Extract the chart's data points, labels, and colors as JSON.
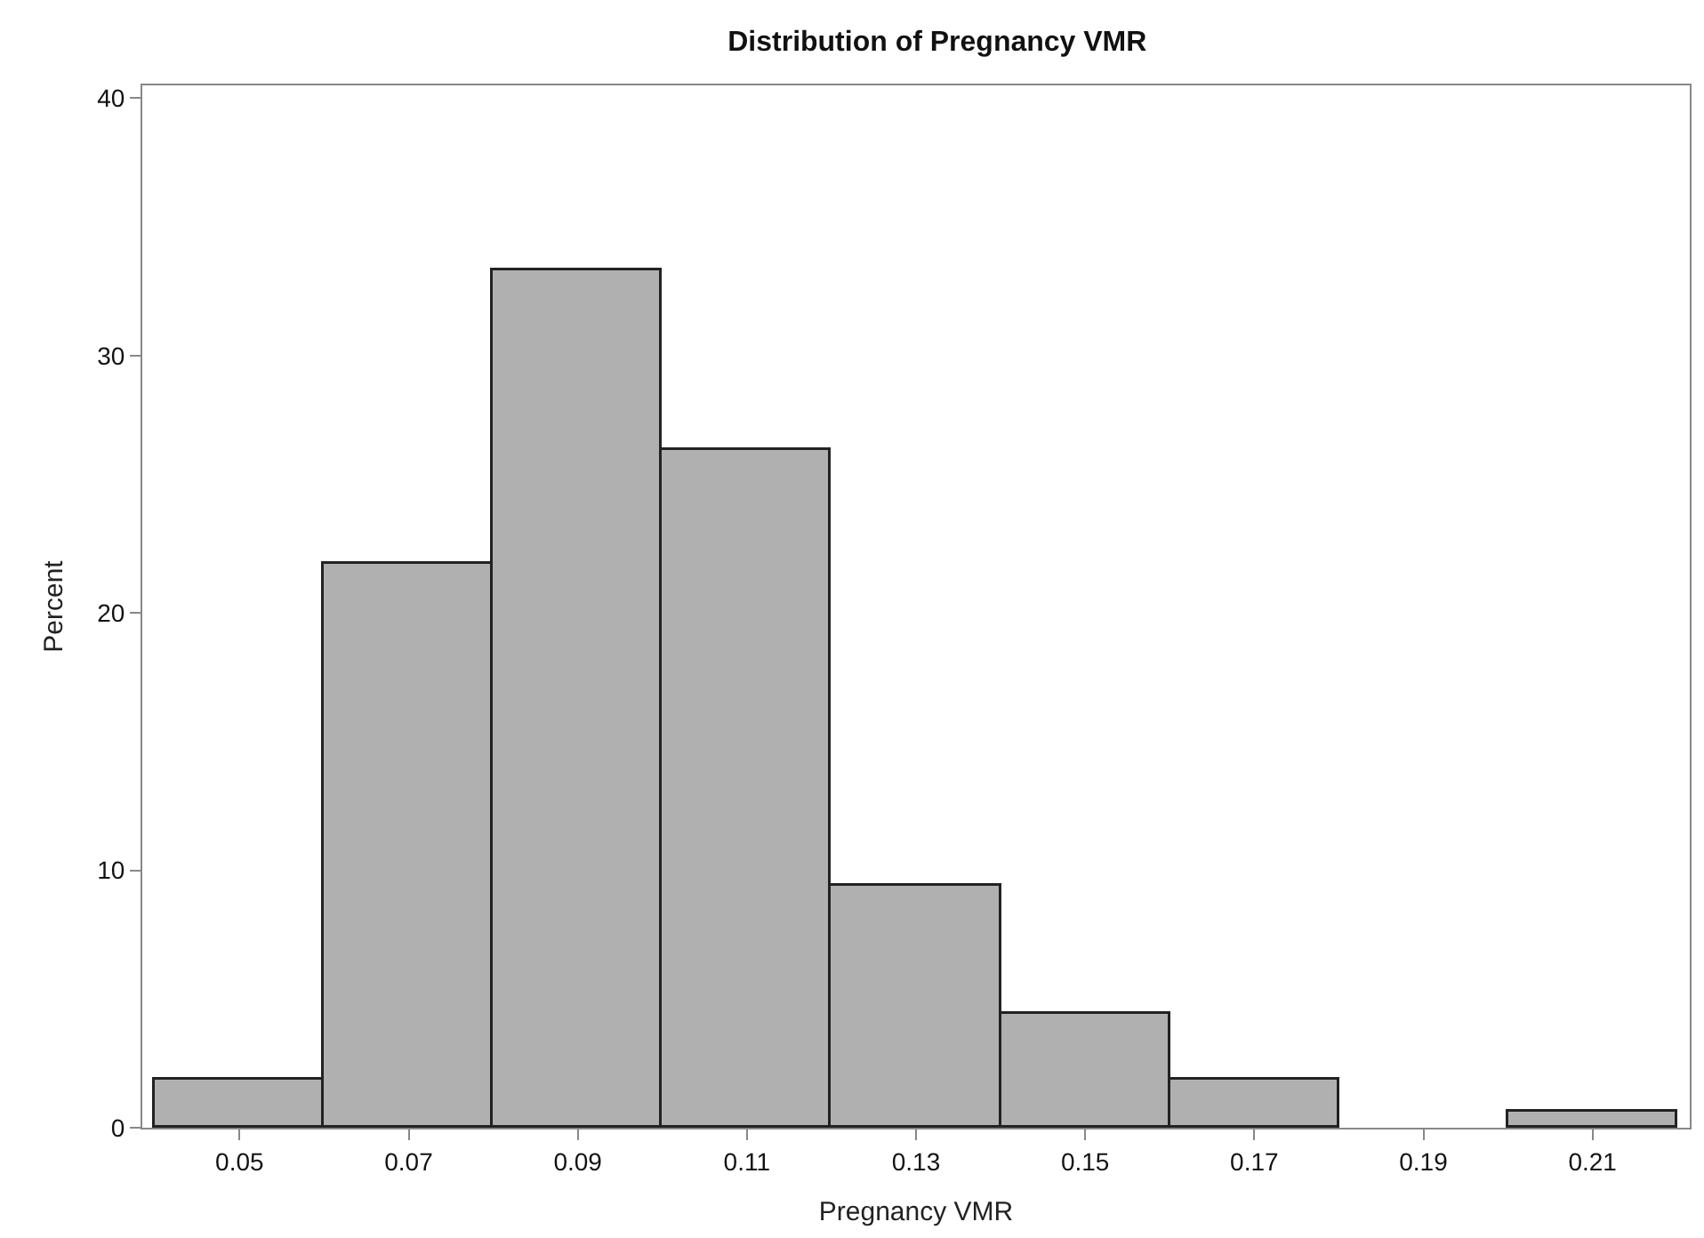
{
  "chart_data": {
    "type": "histogram",
    "title": "Distribution of Pregnancy VMR",
    "xlabel": "Pregnancy VMR",
    "ylabel": "Percent",
    "bins": [
      0.04,
      0.06,
      0.08,
      0.1,
      0.12,
      0.14,
      0.16,
      0.18,
      0.2,
      0.22
    ],
    "values": [
      1.9,
      21.9,
      33.3,
      26.3,
      9.4,
      4.4,
      1.9,
      0,
      0.6
    ],
    "color": "#b0b0b0",
    "xlim": [
      0.0385,
      0.2215
    ],
    "xticks": [
      0.05,
      0.07,
      0.09,
      0.11,
      0.13,
      0.15,
      0.17,
      0.19,
      0.21
    ],
    "ylim": [
      0,
      40.5
    ],
    "yticks": [
      0,
      10,
      20,
      30,
      40
    ]
  }
}
